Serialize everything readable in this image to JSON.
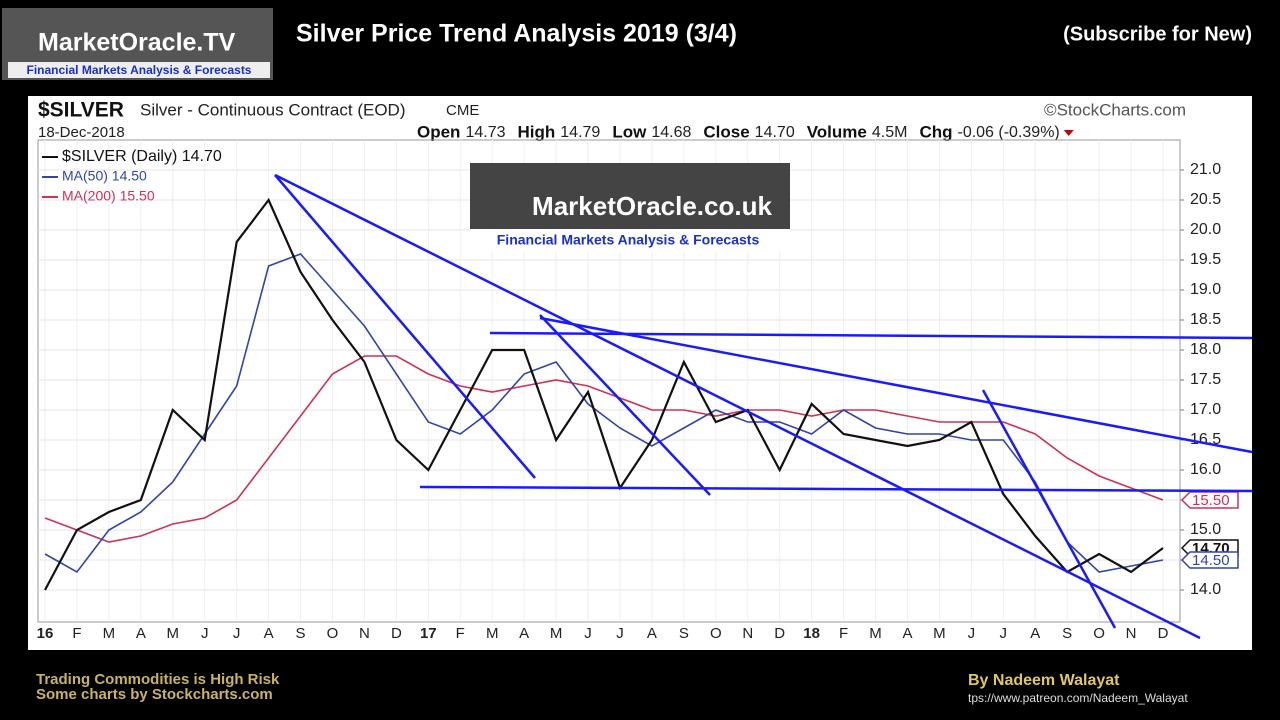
{
  "header": {
    "logo": "MarketOracle.TV",
    "logo_tagline": "Financial Markets Analysis & Forecasts",
    "title": "Silver Price Trend Analysis 2019  (3/4)",
    "subscribe": "(Subscribe for New)"
  },
  "footer": {
    "risk": "Trading Commodities is High Risk",
    "credit": "Some charts by Stockcharts.com",
    "author": "By Nadeem Walayat",
    "url": "tps://www.patreon.com/Nadeem_Walayat"
  },
  "chart_data": {
    "type": "line",
    "symbol": "$SILVER",
    "title": "Silver - Continuous Contract (EOD)",
    "exchange": "CME",
    "source": "©StockCharts.com",
    "date": "18-Dec-2018",
    "quote": [
      {
        "label": "Open",
        "value": "14.73"
      },
      {
        "label": "High",
        "value": "14.79"
      },
      {
        "label": "Low",
        "value": "14.68"
      },
      {
        "label": "Close",
        "value": "14.70"
      },
      {
        "label": "Volume",
        "value": "4.5M"
      },
      {
        "label": "Chg",
        "value": "-0.06 (-0.39%)"
      }
    ],
    "watermark": "MarketOracle.co.uk",
    "watermark_tagline": "Financial Markets Analysis & Forecasts",
    "categories": [
      "16",
      "F",
      "M",
      "A",
      "M",
      "J",
      "J",
      "A",
      "S",
      "O",
      "N",
      "D",
      "17",
      "F",
      "M",
      "A",
      "M",
      "J",
      "J",
      "A",
      "S",
      "O",
      "N",
      "D",
      "18",
      "F",
      "M",
      "A",
      "M",
      "J",
      "J",
      "A",
      "S",
      "O",
      "N",
      "D"
    ],
    "series": [
      {
        "name": "$SILVER (Daily) 14.70",
        "color": "#111111",
        "values": [
          14.0,
          15.0,
          15.3,
          15.5,
          17.0,
          16.5,
          19.8,
          20.5,
          19.3,
          18.5,
          17.8,
          16.5,
          16.0,
          17.0,
          18.0,
          18.0,
          16.5,
          17.3,
          15.7,
          16.5,
          17.8,
          16.8,
          17.0,
          16.0,
          17.1,
          16.6,
          16.5,
          16.4,
          16.5,
          16.8,
          15.6,
          14.9,
          14.3,
          14.6,
          14.3,
          14.7
        ]
      },
      {
        "name": "MA(50) 14.50",
        "color": "#3344aa",
        "values": [
          14.6,
          14.3,
          15.0,
          15.3,
          15.8,
          16.6,
          17.4,
          19.4,
          19.6,
          19.0,
          18.4,
          17.6,
          16.8,
          16.6,
          17.0,
          17.6,
          17.8,
          17.1,
          16.7,
          16.4,
          16.7,
          17.0,
          16.8,
          16.8,
          16.6,
          17.0,
          16.7,
          16.6,
          16.6,
          16.5,
          16.5,
          15.8,
          14.8,
          14.3,
          14.4,
          14.5
        ]
      },
      {
        "name": "MA(200) 15.50",
        "color": "#cc3355",
        "values": [
          15.2,
          15.0,
          14.8,
          14.9,
          15.1,
          15.2,
          15.5,
          16.2,
          16.9,
          17.6,
          17.9,
          17.9,
          17.6,
          17.4,
          17.3,
          17.4,
          17.5,
          17.4,
          17.2,
          17.0,
          17.0,
          16.9,
          17.0,
          17.0,
          16.9,
          17.0,
          17.0,
          16.9,
          16.8,
          16.8,
          16.8,
          16.6,
          16.2,
          15.9,
          15.7,
          15.5
        ]
      }
    ],
    "price_tags": [
      {
        "value": 15.5,
        "label": "15.50",
        "color": "#cc3355"
      },
      {
        "value": 14.7,
        "label": "14.70",
        "color": "#111111"
      },
      {
        "value": 14.5,
        "label": "14.50",
        "color": "#3344aa"
      }
    ],
    "ylim": [
      13.5,
      21.5
    ],
    "yticks": [
      {
        "value": 14,
        "label": "14.0"
      },
      14.5,
      {
        "value": 15,
        "label": "15.0"
      },
      15.5,
      {
        "value": 16,
        "label": "16.0"
      },
      16.5,
      {
        "value": 17,
        "label": "17.0"
      },
      17.5,
      {
        "value": 18,
        "label": "18.0"
      },
      18.5,
      {
        "value": 19,
        "label": "19.0"
      },
      19.5,
      {
        "value": 20,
        "label": "20.0"
      },
      20.5,
      {
        "value": 21,
        "label": "21.0"
      }
    ],
    "grid": true
  }
}
